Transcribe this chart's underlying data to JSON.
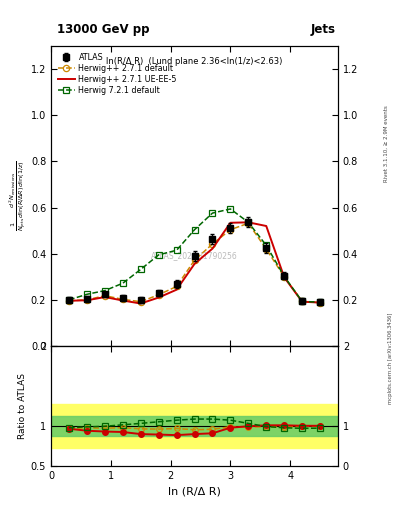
{
  "title_left": "13000 GeV pp",
  "title_right": "Jets",
  "subplot_title": "ln(R/Δ R)  (Lund plane 2.36<ln(1/z)<2.63)",
  "watermark": "ATLAS_2020_I1790256",
  "right_label": "Rivet 3.1.10, ≥ 2.9M events",
  "arxiv_label": "mcplots.cern.ch [arXiv:1306.3436]",
  "xlabel": "ln (R/Δ R)",
  "atlas_x": [
    0.3,
    0.6,
    0.9,
    1.2,
    1.5,
    1.8,
    2.1,
    2.4,
    2.7,
    3.0,
    3.3,
    3.6,
    3.9,
    4.2,
    4.5
  ],
  "atlas_y": [
    0.2,
    0.204,
    0.224,
    0.208,
    0.2,
    0.23,
    0.268,
    0.39,
    0.462,
    0.51,
    0.538,
    0.425,
    0.305,
    0.195,
    0.192
  ],
  "atlas_yerr": [
    0.012,
    0.012,
    0.012,
    0.012,
    0.012,
    0.014,
    0.016,
    0.02,
    0.022,
    0.022,
    0.022,
    0.02,
    0.016,
    0.013,
    0.013
  ],
  "herwigpp_def_x": [
    0.3,
    0.6,
    0.9,
    1.2,
    1.5,
    1.8,
    2.1,
    2.4,
    2.7,
    3.0,
    3.3,
    3.6,
    3.9,
    4.2,
    4.5
  ],
  "herwigpp_def_y": [
    0.196,
    0.2,
    0.218,
    0.202,
    0.192,
    0.222,
    0.258,
    0.372,
    0.442,
    0.504,
    0.532,
    0.42,
    0.3,
    0.193,
    0.188
  ],
  "herwigpp_ue_x": [
    0.3,
    0.6,
    0.9,
    1.2,
    1.5,
    1.8,
    2.1,
    2.4,
    2.7,
    3.0,
    3.3,
    3.6,
    3.9,
    4.2,
    4.5
  ],
  "herwigpp_ue_y": [
    0.196,
    0.198,
    0.212,
    0.197,
    0.184,
    0.21,
    0.244,
    0.356,
    0.422,
    0.534,
    0.536,
    0.52,
    0.298,
    0.192,
    0.188
  ],
  "herwig721_x": [
    0.3,
    0.6,
    0.9,
    1.2,
    1.5,
    1.8,
    2.1,
    2.4,
    2.7,
    3.0,
    3.3,
    3.6,
    3.9,
    4.2,
    4.5
  ],
  "herwig721_y": [
    0.2,
    0.224,
    0.24,
    0.272,
    0.332,
    0.395,
    0.415,
    0.504,
    0.576,
    0.594,
    0.536,
    0.436,
    0.302,
    0.193,
    0.19
  ],
  "ratio_herwigpp_def_y": [
    0.973,
    0.975,
    0.972,
    0.978,
    0.964,
    0.96,
    0.968,
    0.952,
    0.958,
    0.99,
    0.988,
    0.99,
    0.988,
    0.996,
    0.998
  ],
  "ratio_herwigpp_ue_y": [
    0.965,
    0.94,
    0.93,
    0.924,
    0.898,
    0.892,
    0.885,
    0.898,
    0.908,
    0.978,
    0.996,
    1.008,
    1.008,
    1.002,
    1.002
  ],
  "ratio_herwig721_y": [
    0.978,
    0.988,
    0.996,
    1.014,
    1.032,
    1.052,
    1.072,
    1.086,
    1.086,
    1.072,
    1.032,
    0.992,
    0.977,
    0.97,
    0.972
  ],
  "ratio_band_yellow_low": 0.72,
  "ratio_band_yellow_high": 1.28,
  "ratio_band_green_low": 0.87,
  "ratio_band_green_high": 1.13,
  "color_atlas": "#000000",
  "color_herwigpp_def": "#cc8800",
  "color_herwigpp_ue": "#cc0000",
  "color_herwig721": "#006600",
  "xlim": [
    0,
    4.8
  ],
  "ylim_main": [
    0.0,
    1.3
  ],
  "ylim_ratio": [
    0.5,
    2.0
  ],
  "yticks_main": [
    0.0,
    0.2,
    0.4,
    0.6,
    0.8,
    1.0,
    1.2
  ],
  "yticks_ratio_left": [
    0.5,
    1.0,
    2.0
  ],
  "yticks_ratio_right": [
    0.5,
    1.0,
    2.0
  ]
}
